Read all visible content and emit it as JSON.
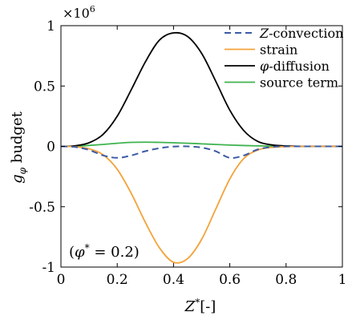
{
  "chart_data": {
    "type": "line",
    "xlabel": "Z*[-]",
    "ylabel": "g_φ budget",
    "y_multiplier": "×10^6",
    "y_multiplier_base": "×10",
    "y_multiplier_exp": "6",
    "xlim": [
      0,
      1
    ],
    "ylim": [
      -1,
      1
    ],
    "x_ticks": [
      "0",
      "0.2",
      "0.4",
      "0.6",
      "0.8",
      "1"
    ],
    "y_ticks": [
      "-1",
      "-0.5",
      "0",
      "0.5",
      "1"
    ],
    "grid": false,
    "legend_position": "top-right",
    "annotation": "(φ* = 0.2)",
    "x": [
      0,
      0.05,
      0.1,
      0.15,
      0.2,
      0.25,
      0.3,
      0.35,
      0.4,
      0.45,
      0.5,
      0.55,
      0.6,
      0.65,
      0.7,
      0.75,
      0.8,
      0.85,
      0.9,
      0.95,
      1.0
    ],
    "series": [
      {
        "name": "Z-convection",
        "color": "#3b5ba5",
        "dash": "8,5",
        "values": [
          0,
          -0.005,
          -0.03,
          -0.075,
          -0.095,
          -0.075,
          -0.04,
          -0.015,
          -0.002,
          0,
          -0.01,
          -0.04,
          -0.095,
          -0.075,
          -0.025,
          -0.005,
          0,
          0,
          0,
          0,
          0
        ]
      },
      {
        "name": "strain",
        "color": "#f4a23a",
        "dash": "",
        "values": [
          0,
          -0.003,
          -0.02,
          -0.07,
          -0.19,
          -0.39,
          -0.63,
          -0.84,
          -0.96,
          -0.93,
          -0.77,
          -0.52,
          -0.27,
          -0.1,
          -0.03,
          -0.008,
          -0.002,
          0,
          0,
          0,
          0
        ]
      },
      {
        "name": "φ-diffusion",
        "color": "#000000",
        "dash": "",
        "values": [
          0,
          0.005,
          0.03,
          0.1,
          0.25,
          0.47,
          0.7,
          0.88,
          0.94,
          0.91,
          0.77,
          0.54,
          0.3,
          0.13,
          0.04,
          0.012,
          0.004,
          0.001,
          0.001,
          0.001,
          0.001
        ]
      },
      {
        "name": "source term",
        "color": "#3fb34f",
        "dash": "",
        "values": [
          0,
          0.002,
          0.008,
          0.016,
          0.026,
          0.033,
          0.035,
          0.033,
          0.03,
          0.026,
          0.021,
          0.016,
          0.011,
          0.007,
          0.004,
          0.002,
          0.001,
          0,
          0,
          0,
          0
        ]
      }
    ]
  }
}
